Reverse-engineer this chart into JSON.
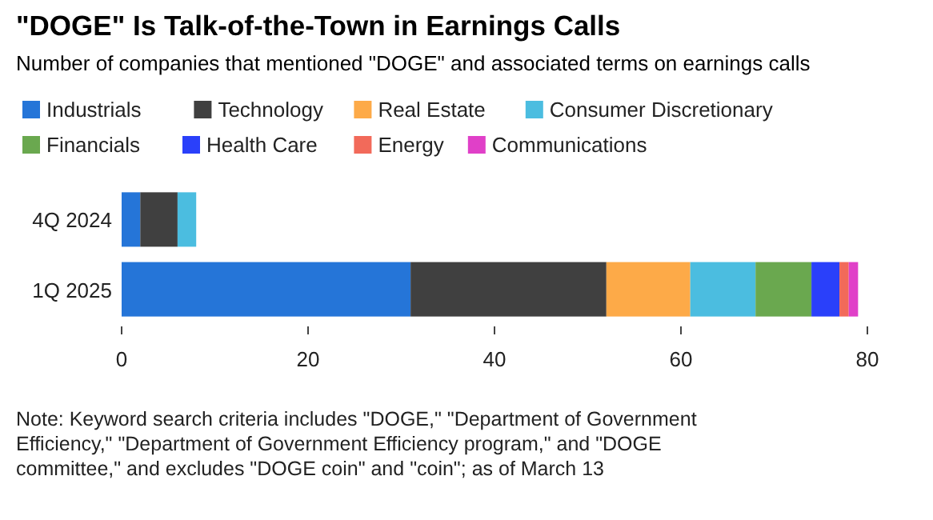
{
  "chart_data": {
    "type": "bar",
    "orientation": "horizontal",
    "stacked": true,
    "title": "\"DOGE\" Is Talk-of-the-Town in Earnings Calls",
    "subtitle": "Number of companies that mentioned \"DOGE\" and associated terms on earnings calls",
    "categories": [
      "4Q 2024",
      "1Q 2025"
    ],
    "series": [
      {
        "name": "Industrials",
        "color": "#2575d8",
        "values": [
          2,
          31
        ]
      },
      {
        "name": "Technology",
        "color": "#404040",
        "values": [
          4,
          21
        ]
      },
      {
        "name": "Real Estate",
        "color": "#fdaa48",
        "values": [
          0,
          9
        ]
      },
      {
        "name": "Consumer Discretionary",
        "color": "#4bbde0",
        "values": [
          2,
          7
        ]
      },
      {
        "name": "Financials",
        "color": "#6aa84f",
        "values": [
          0,
          6
        ]
      },
      {
        "name": "Health Care",
        "color": "#2a40fa",
        "values": [
          0,
          3
        ]
      },
      {
        "name": "Energy",
        "color": "#f26a5a",
        "values": [
          0,
          1
        ]
      },
      {
        "name": "Communications",
        "color": "#e040c8",
        "values": [
          0,
          1
        ]
      }
    ],
    "xlim": [
      0,
      80
    ],
    "xticks": [
      0,
      20,
      40,
      60,
      80
    ],
    "grid": false,
    "legend": "top left",
    "annotations": [
      "Note: Keyword search criteria includes \"DOGE,\" \"Department of Government Efficiency,\" \"Department of Government Efficiency program,\" and \"DOGE committee,\" and excludes \"DOGE coin\" and \"coin\"; as of March 13"
    ]
  }
}
